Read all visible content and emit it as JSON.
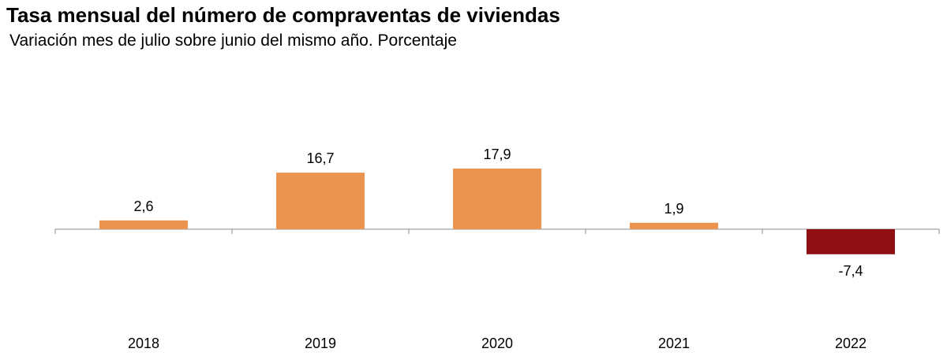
{
  "header": {
    "title": "Tasa mensual del número de compraventas de viviendas",
    "subtitle": "Variación mes de julio sobre junio del mismo año. Porcentaje"
  },
  "chart_data": {
    "type": "bar",
    "categories": [
      "2018",
      "2019",
      "2020",
      "2021",
      "2022"
    ],
    "values": [
      2.6,
      16.7,
      17.9,
      1.9,
      -7.4
    ],
    "value_labels": [
      "2,6",
      "16,7",
      "17,9",
      "1,9",
      "-7,4"
    ],
    "title": "Tasa mensual del número de compraventas de viviendas",
    "subtitle": "Variación mes de julio sobre junio del mismo año. Porcentaje",
    "xlabel": "",
    "ylabel": "",
    "colors": {
      "positive": "#EB9450",
      "negative": "#8E0F14",
      "axis": "#8C8C8C"
    },
    "grid": false,
    "legend": "none"
  }
}
